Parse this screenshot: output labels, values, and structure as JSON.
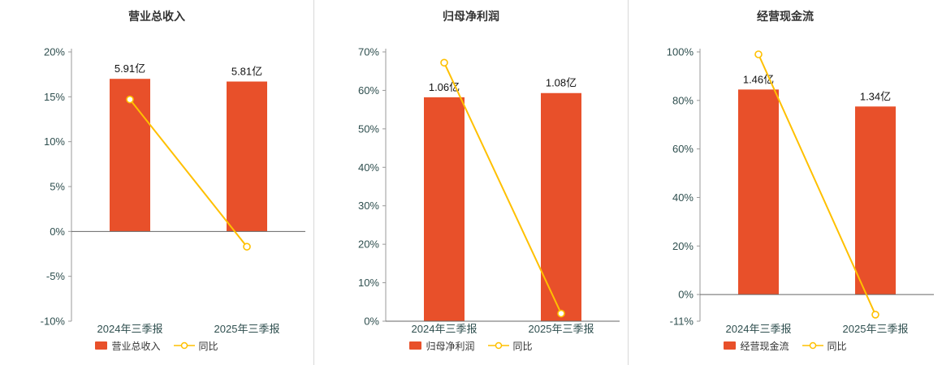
{
  "chart_data": [
    {
      "type": "bar",
      "title": "营业总收入",
      "categories": [
        "2024年三季报",
        "2025年三季报"
      ],
      "bar_series": {
        "name": "营业总收入",
        "unit": "亿",
        "values": [
          5.91,
          5.81
        ],
        "labels": [
          "5.91亿",
          "5.81亿"
        ],
        "plotted_pct": [
          17.0,
          16.7
        ],
        "color": "#e8502a"
      },
      "line_series": {
        "name": "同比",
        "values_pct": [
          14.7,
          -1.7
        ],
        "color": "#ffc000"
      },
      "ylim": [
        -10,
        20
      ],
      "yticks": [
        -10,
        -5,
        0,
        5,
        10,
        15,
        20
      ],
      "ytick_labels": [
        "-10%",
        "-5%",
        "0%",
        "5%",
        "10%",
        "15%",
        "20%"
      ],
      "grid": false,
      "legend_position": "bottom"
    },
    {
      "type": "bar",
      "title": "归母净利润",
      "categories": [
        "2024年三季报",
        "2025年三季报"
      ],
      "bar_series": {
        "name": "归母净利润",
        "unit": "亿",
        "values": [
          1.06,
          1.08
        ],
        "labels": [
          "1.06亿",
          "1.08亿"
        ],
        "plotted_pct": [
          58.2,
          59.3
        ],
        "color": "#e8502a"
      },
      "line_series": {
        "name": "同比",
        "values_pct": [
          67.2,
          2.0
        ],
        "color": "#ffc000"
      },
      "ylim": [
        0,
        70
      ],
      "yticks": [
        0,
        10,
        20,
        30,
        40,
        50,
        60,
        70
      ],
      "ytick_labels": [
        "0%",
        "10%",
        "20%",
        "30%",
        "40%",
        "50%",
        "60%",
        "70%"
      ],
      "grid": false,
      "legend_position": "bottom"
    },
    {
      "type": "bar",
      "title": "经营现金流",
      "categories": [
        "2024年三季报",
        "2025年三季报"
      ],
      "bar_series": {
        "name": "经营现金流",
        "unit": "亿",
        "values": [
          1.46,
          1.34
        ],
        "labels": [
          "1.46亿",
          "1.34亿"
        ],
        "plotted_pct": [
          84.5,
          77.5
        ],
        "color": "#e8502a"
      },
      "line_series": {
        "name": "同比",
        "values_pct": [
          99.0,
          -8.3
        ],
        "color": "#ffc000"
      },
      "ylim": [
        -11,
        100
      ],
      "yticks": [
        -11,
        0,
        20,
        40,
        60,
        80,
        100
      ],
      "ytick_labels": [
        "-11%",
        "0%",
        "20%",
        "40%",
        "60%",
        "80%",
        "100%"
      ],
      "grid": false,
      "legend_position": "bottom"
    }
  ],
  "styles": {
    "bar_color": "#e8502a",
    "line_color": "#ffc000",
    "axis_line_color": "#999999",
    "zero_line_color": "#666666",
    "axis_text_color": "#2f4f4f",
    "divider_color": "#d9d9d9"
  }
}
